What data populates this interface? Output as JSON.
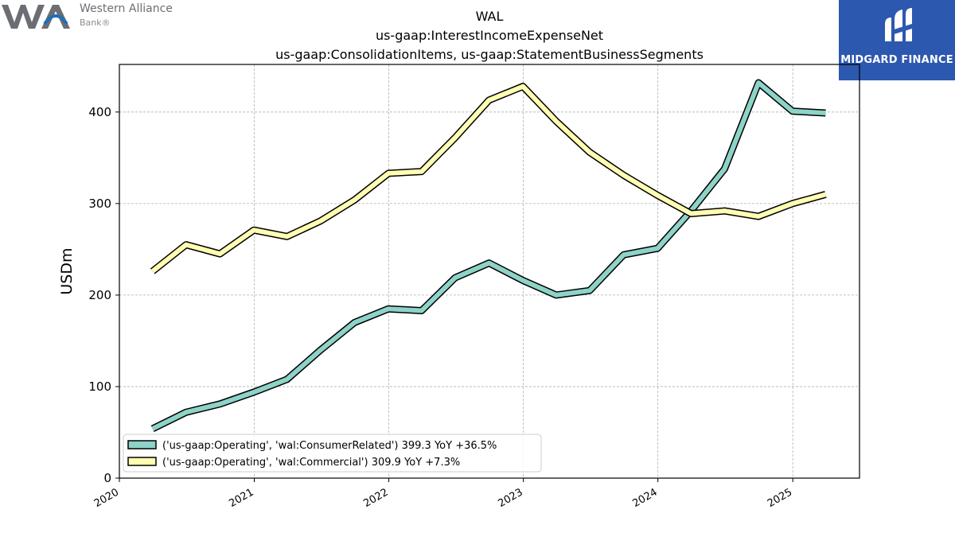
{
  "branding": {
    "left_logo_line1": "Western Alliance",
    "left_logo_line2": "Bank®",
    "right_logo_text": "MIDGARD FINANCE",
    "left_logo_color": "#6b6e73",
    "left_logo_accent": "#1f6fb5",
    "right_logo_bg": "#2c58b0"
  },
  "chart_data": {
    "type": "line",
    "title_lines": [
      "WAL",
      "us-gaap:InterestIncomeExpenseNet",
      "us-gaap:ConsolidationItems, us-gaap:StatementBusinessSegments"
    ],
    "xlabel": "",
    "ylabel": "USDm",
    "ylim": [
      0,
      452
    ],
    "xlim": [
      "2020-01-01",
      "2025-07-01"
    ],
    "yticks": [
      0,
      100,
      200,
      300,
      400
    ],
    "xticks": [
      "2020",
      "2021",
      "2022",
      "2023",
      "2024",
      "2025"
    ],
    "grid": true,
    "legend_position": "lower-left",
    "x": [
      "2020-03-31",
      "2020-06-30",
      "2020-09-30",
      "2020-12-31",
      "2021-03-31",
      "2021-06-30",
      "2021-09-30",
      "2021-12-31",
      "2022-03-31",
      "2022-06-30",
      "2022-09-30",
      "2022-12-31",
      "2023-03-31",
      "2023-06-30",
      "2023-09-30",
      "2023-12-31",
      "2024-03-31",
      "2024-06-30",
      "2024-09-30",
      "2024-12-31",
      "2025-03-31"
    ],
    "series": [
      {
        "name": "('us-gaap:Operating', 'wal:ConsumerRelated') 399.3 YoY +36.5%",
        "color": "#8dd3c7",
        "values": [
          54,
          72,
          81,
          94,
          108,
          140,
          170,
          185,
          183,
          219,
          235,
          216,
          200,
          205,
          244,
          251,
          292,
          338,
          432,
          401,
          399
        ]
      },
      {
        "name": "('us-gaap:Operating', 'wal:Commercial') 309.9 YoY +7.3%",
        "color": "#ffffb3",
        "values": [
          226,
          255,
          245,
          271,
          264,
          281,
          304,
          333,
          335,
          372,
          413,
          428,
          390,
          356,
          331,
          309,
          289,
          292,
          286,
          300,
          310
        ]
      }
    ]
  }
}
